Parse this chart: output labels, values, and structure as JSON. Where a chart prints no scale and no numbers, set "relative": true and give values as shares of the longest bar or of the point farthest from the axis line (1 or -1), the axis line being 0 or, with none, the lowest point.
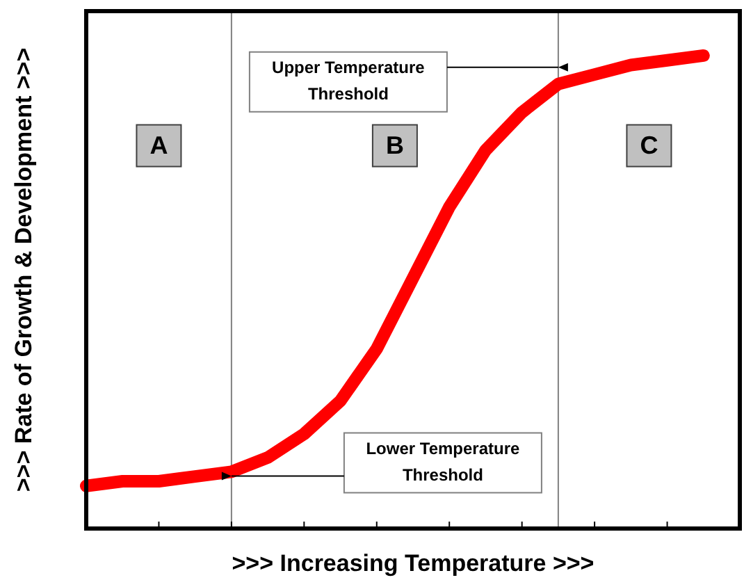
{
  "chart_data": {
    "type": "line",
    "relative": true,
    "xlabel": ">>> Increasing Temperature >>>",
    "ylabel": ">>> Rate of Growth & Development >>>",
    "categories": [
      null,
      null,
      null,
      null,
      null,
      null,
      null,
      null,
      null,
      null,
      null,
      null,
      null,
      null,
      null,
      null,
      null,
      null,
      null
    ],
    "series": [
      {
        "color": "#ff0000",
        "values": [
          0.09,
          0.1,
          0.1,
          0.11,
          0.12,
          0.15,
          0.2,
          0.27,
          0.38,
          0.53,
          0.68,
          0.8,
          0.88,
          0.94,
          0.96,
          0.98,
          0.99,
          1,
          null
        ]
      }
    ],
    "annotations": [
      "A",
      "B",
      "C",
      "Upper Temperature\nThreshold",
      "Lower Temperature\nThreshold"
    ],
    "marker": "none",
    "line_style": "solid"
  }
}
